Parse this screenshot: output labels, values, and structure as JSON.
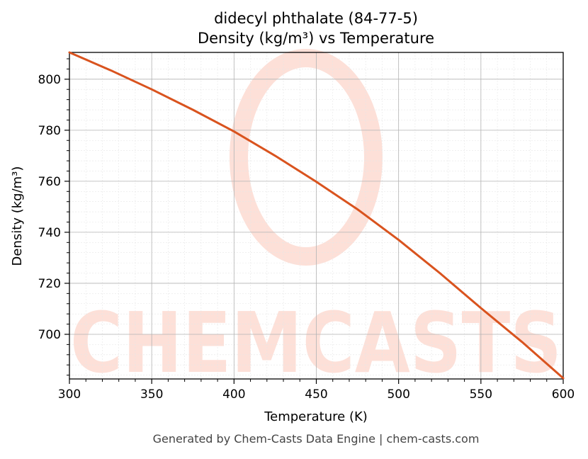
{
  "chart_data": {
    "type": "line",
    "title_line1": "didecyl phthalate (84-77-5)",
    "title_line2": "Density (kg/m³) vs Temperature",
    "xlabel": "Temperature (K)",
    "ylabel": "Density (kg/m³)",
    "xlim": [
      300,
      600
    ],
    "ylim": [
      682.5,
      810.5
    ],
    "x_ticks": [
      300,
      350,
      400,
      450,
      500,
      550,
      600
    ],
    "y_ticks": [
      700,
      720,
      740,
      760,
      780,
      800
    ],
    "grid": true,
    "series": [
      {
        "color": "#d9531e",
        "x": [
          300,
          325,
          350,
          375,
          400,
          425,
          450,
          475,
          500,
          525,
          550,
          575,
          600
        ],
        "y": [
          810.5,
          803.5,
          796.0,
          788.0,
          779.5,
          770.0,
          759.8,
          749.0,
          737.0,
          724.0,
          710.3,
          697.0,
          682.8
        ]
      }
    ]
  },
  "watermark": {
    "text": "CHEMCASTS",
    "color": "#fdd5cc"
  },
  "footer": {
    "text": "Generated by Chem-Casts Data Engine | chem-casts.com"
  }
}
